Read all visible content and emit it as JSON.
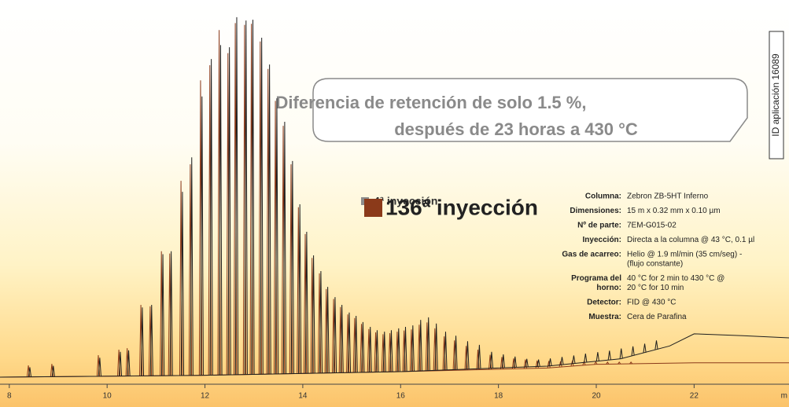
{
  "chart_data": {
    "type": "chromatogram",
    "annotation": [
      "Diferencia de retención de solo 1.5 %,",
      "después de 23 horas a 430 °C"
    ],
    "id_label": "ID aplicación 16089",
    "x_label": "m",
    "xlim": [
      7.81,
      23.94
    ],
    "xticks": [
      8,
      10,
      12,
      14,
      16,
      18,
      20,
      22
    ],
    "ylim": [
      0,
      100
    ],
    "series": [
      {
        "name": "4ª inyección",
        "color": "#1e1e1e",
        "x": [
          8.42,
          8.9,
          9.85,
          10.27,
          10.44,
          10.72,
          10.91,
          11.14,
          11.31,
          11.54,
          11.73,
          11.94,
          12.13,
          12.32,
          12.5,
          12.65,
          12.84,
          12.98,
          13.16,
          13.32,
          13.47,
          13.63,
          13.79,
          13.94,
          14.08,
          14.22,
          14.37,
          14.51,
          14.66,
          14.8,
          14.95,
          15.09,
          15.23,
          15.38,
          15.52,
          15.67,
          15.81,
          15.96,
          16.1,
          16.25,
          16.41,
          16.57,
          16.73,
          16.92,
          17.13,
          17.37,
          17.61,
          17.86,
          18.1,
          18.34,
          18.58,
          18.82,
          19.06,
          19.3,
          19.54,
          19.78,
          20.03,
          20.27,
          20.51,
          20.75,
          20.99,
          21.23
        ],
        "values": [
          4.2,
          4.6,
          6.8,
          8.4,
          8.8,
          20.5,
          21.2,
          35.0,
          35.8,
          52.0,
          61.4,
          78.0,
          88.2,
          92.0,
          91.4,
          99.6,
          98.7,
          98.9,
          94.0,
          86.7,
          77.5,
          71.1,
          60.4,
          48.6,
          41.1,
          34.7,
          30.4,
          26.1,
          23.3,
          21.2,
          19.1,
          18.2,
          16.5,
          15.2,
          14.3,
          13.9,
          14.3,
          14.8,
          15.2,
          15.6,
          17.1,
          17.8,
          16.1,
          13.9,
          12.8,
          11.3,
          10.3,
          8.4,
          7.7,
          7.1,
          6.5,
          6.3,
          6.6,
          7.0,
          7.4,
          7.9,
          8.3,
          8.7,
          9.3,
          9.9,
          10.6,
          11.5
        ],
        "baseline_x": [
          7.81,
          12,
          16,
          19,
          20.5,
          21.5,
          22,
          23,
          23.94
        ],
        "baseline": [
          1.5,
          2,
          3,
          4.5,
          6.5,
          10,
          13.3,
          12.8,
          12.2
        ]
      },
      {
        "name": "136ª inyección",
        "color": "#8b3a1a",
        "x": [
          8.39,
          8.87,
          9.82,
          10.24,
          10.41,
          10.69,
          10.88,
          11.11,
          11.28,
          11.51,
          11.7,
          11.91,
          12.1,
          12.29,
          12.47,
          12.62,
          12.81,
          12.95,
          13.13,
          13.29,
          13.44,
          13.6,
          13.76,
          13.91,
          14.05,
          14.19,
          14.34,
          14.48,
          14.63,
          14.77,
          14.92,
          15.06,
          15.2,
          15.35,
          15.49,
          15.64,
          15.78,
          15.93,
          16.07,
          16.22,
          16.38,
          16.54,
          16.7,
          16.89,
          17.1,
          17.34,
          17.58,
          17.83,
          18.07,
          18.31,
          18.55,
          18.79,
          19.03,
          19.27,
          19.51,
          19.75,
          19.99,
          20.23,
          20.47,
          20.71
        ],
        "values": [
          4.7,
          5.1,
          7.5,
          9.0,
          9.4,
          21.2,
          20.8,
          35.8,
          35.2,
          55.0,
          59.5,
          82.4,
          86.5,
          96.1,
          89.8,
          98.0,
          97.5,
          97.8,
          93.0,
          85.5,
          76.8,
          70.0,
          59.5,
          47.8,
          40.5,
          34.0,
          29.8,
          25.5,
          22.8,
          20.6,
          18.6,
          17.6,
          16.0,
          14.6,
          13.7,
          13.2,
          13.5,
          13.9,
          14.2,
          14.5,
          15.8,
          16.4,
          14.8,
          12.6,
          11.5,
          10.0,
          9.0,
          7.6,
          7.0,
          6.6,
          6.3,
          6.0,
          5.9,
          5.8,
          5.8,
          5.7,
          5.7,
          5.6,
          5.6,
          5.6
        ],
        "baseline_x": [
          7.81,
          12,
          16,
          19,
          20,
          22,
          23.94
        ],
        "baseline": [
          1.5,
          2,
          3,
          4,
          5,
          5.4,
          5.4
        ]
      }
    ],
    "parameters": [
      {
        "label": [
          "Columna:"
        ],
        "value": [
          "Zebron ZB-5HT Inferno"
        ]
      },
      {
        "label": [
          "Dimensiones:"
        ],
        "value": [
          "15 m x 0.32 mm x 0.10 µm"
        ]
      },
      {
        "label": [
          "Nº de parte:"
        ],
        "value": [
          "7EM-G015-02"
        ]
      },
      {
        "label": [
          "Inyección:"
        ],
        "value": [
          "Directa a la columna @ 43 °C, 0.1 µl"
        ]
      },
      {
        "label": [
          "Gas de acarreo:"
        ],
        "value": [
          "Helio @ 1.9 ml/min (35 cm/seg) -",
          "(flujo constante)"
        ]
      },
      {
        "label": [
          "Programa del",
          "horno:"
        ],
        "value": [
          "40 °C for 2 min to 430 °C @",
          "20 °C for 10 min"
        ]
      },
      {
        "label": [
          "Detector:"
        ],
        "value": [
          "FID @ 430 °C"
        ]
      },
      {
        "label": [
          "Muestra:"
        ],
        "value": [
          "Cera de Parafina"
        ]
      }
    ]
  }
}
